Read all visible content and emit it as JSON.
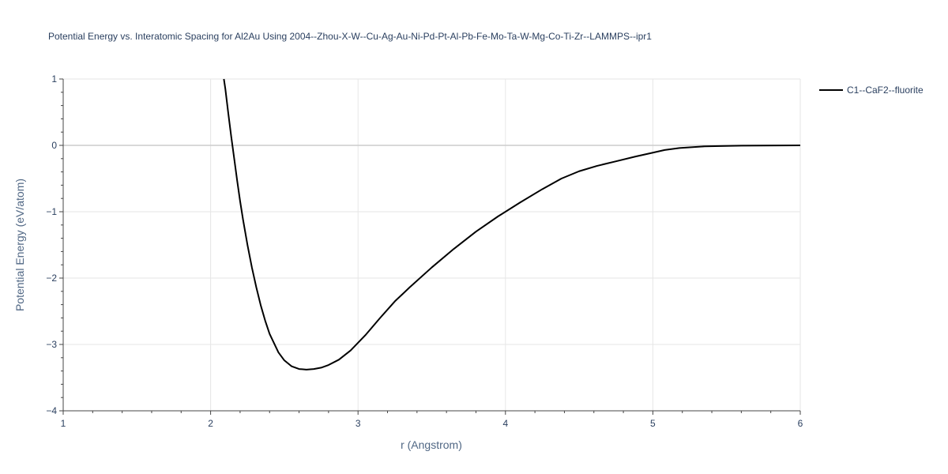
{
  "chart_data": {
    "type": "line",
    "title": "Potential Energy vs. Interatomic Spacing for Al2Au Using 2004--Zhou-X-W--Cu-Ag-Au-Ni-Pd-Pt-Al-Pb-Fe-Mo-Ta-W-Mg-Co-Ti-Zr--LAMMPS--ipr1",
    "xlabel": "r (Angstrom)",
    "ylabel": "Potential Energy (eV/atom)",
    "xlim": [
      1,
      6
    ],
    "ylim": [
      -4,
      1
    ],
    "x_ticks": [
      1,
      2,
      3,
      4,
      5,
      6
    ],
    "x_tick_labels": [
      "1",
      "2",
      "3",
      "4",
      "5",
      "6"
    ],
    "y_ticks": [
      -4,
      -3,
      -2,
      -1,
      0,
      1
    ],
    "y_tick_labels": [
      "−4",
      "−3",
      "−2",
      "−1",
      "0",
      "1"
    ],
    "grid": true,
    "legend_position": "top-right",
    "series": [
      {
        "name": "C1--CaF2--fluorite",
        "color": "#000000",
        "x": [
          2.09,
          2.1,
          2.12,
          2.14,
          2.16,
          2.18,
          2.2,
          2.22,
          2.25,
          2.28,
          2.31,
          2.34,
          2.37,
          2.4,
          2.43,
          2.46,
          2.5,
          2.55,
          2.6,
          2.65,
          2.7,
          2.75,
          2.8,
          2.87,
          2.95,
          3.05,
          3.15,
          3.25,
          3.35,
          3.5,
          3.65,
          3.8,
          3.95,
          4.1,
          4.25,
          4.38,
          4.5,
          4.62,
          4.75,
          4.88,
          5.0,
          5.08,
          5.18,
          5.35,
          5.6,
          6.0
        ],
        "y": [
          1.0,
          0.85,
          0.48,
          0.13,
          -0.2,
          -0.53,
          -0.84,
          -1.12,
          -1.5,
          -1.84,
          -2.14,
          -2.41,
          -2.64,
          -2.84,
          -2.98,
          -3.12,
          -3.24,
          -3.33,
          -3.37,
          -3.38,
          -3.37,
          -3.35,
          -3.31,
          -3.23,
          -3.09,
          -2.86,
          -2.6,
          -2.35,
          -2.14,
          -1.84,
          -1.56,
          -1.3,
          -1.07,
          -0.86,
          -0.66,
          -0.5,
          -0.39,
          -0.31,
          -0.24,
          -0.17,
          -0.11,
          -0.07,
          -0.04,
          -0.015,
          -0.005,
          0.0
        ]
      }
    ]
  }
}
